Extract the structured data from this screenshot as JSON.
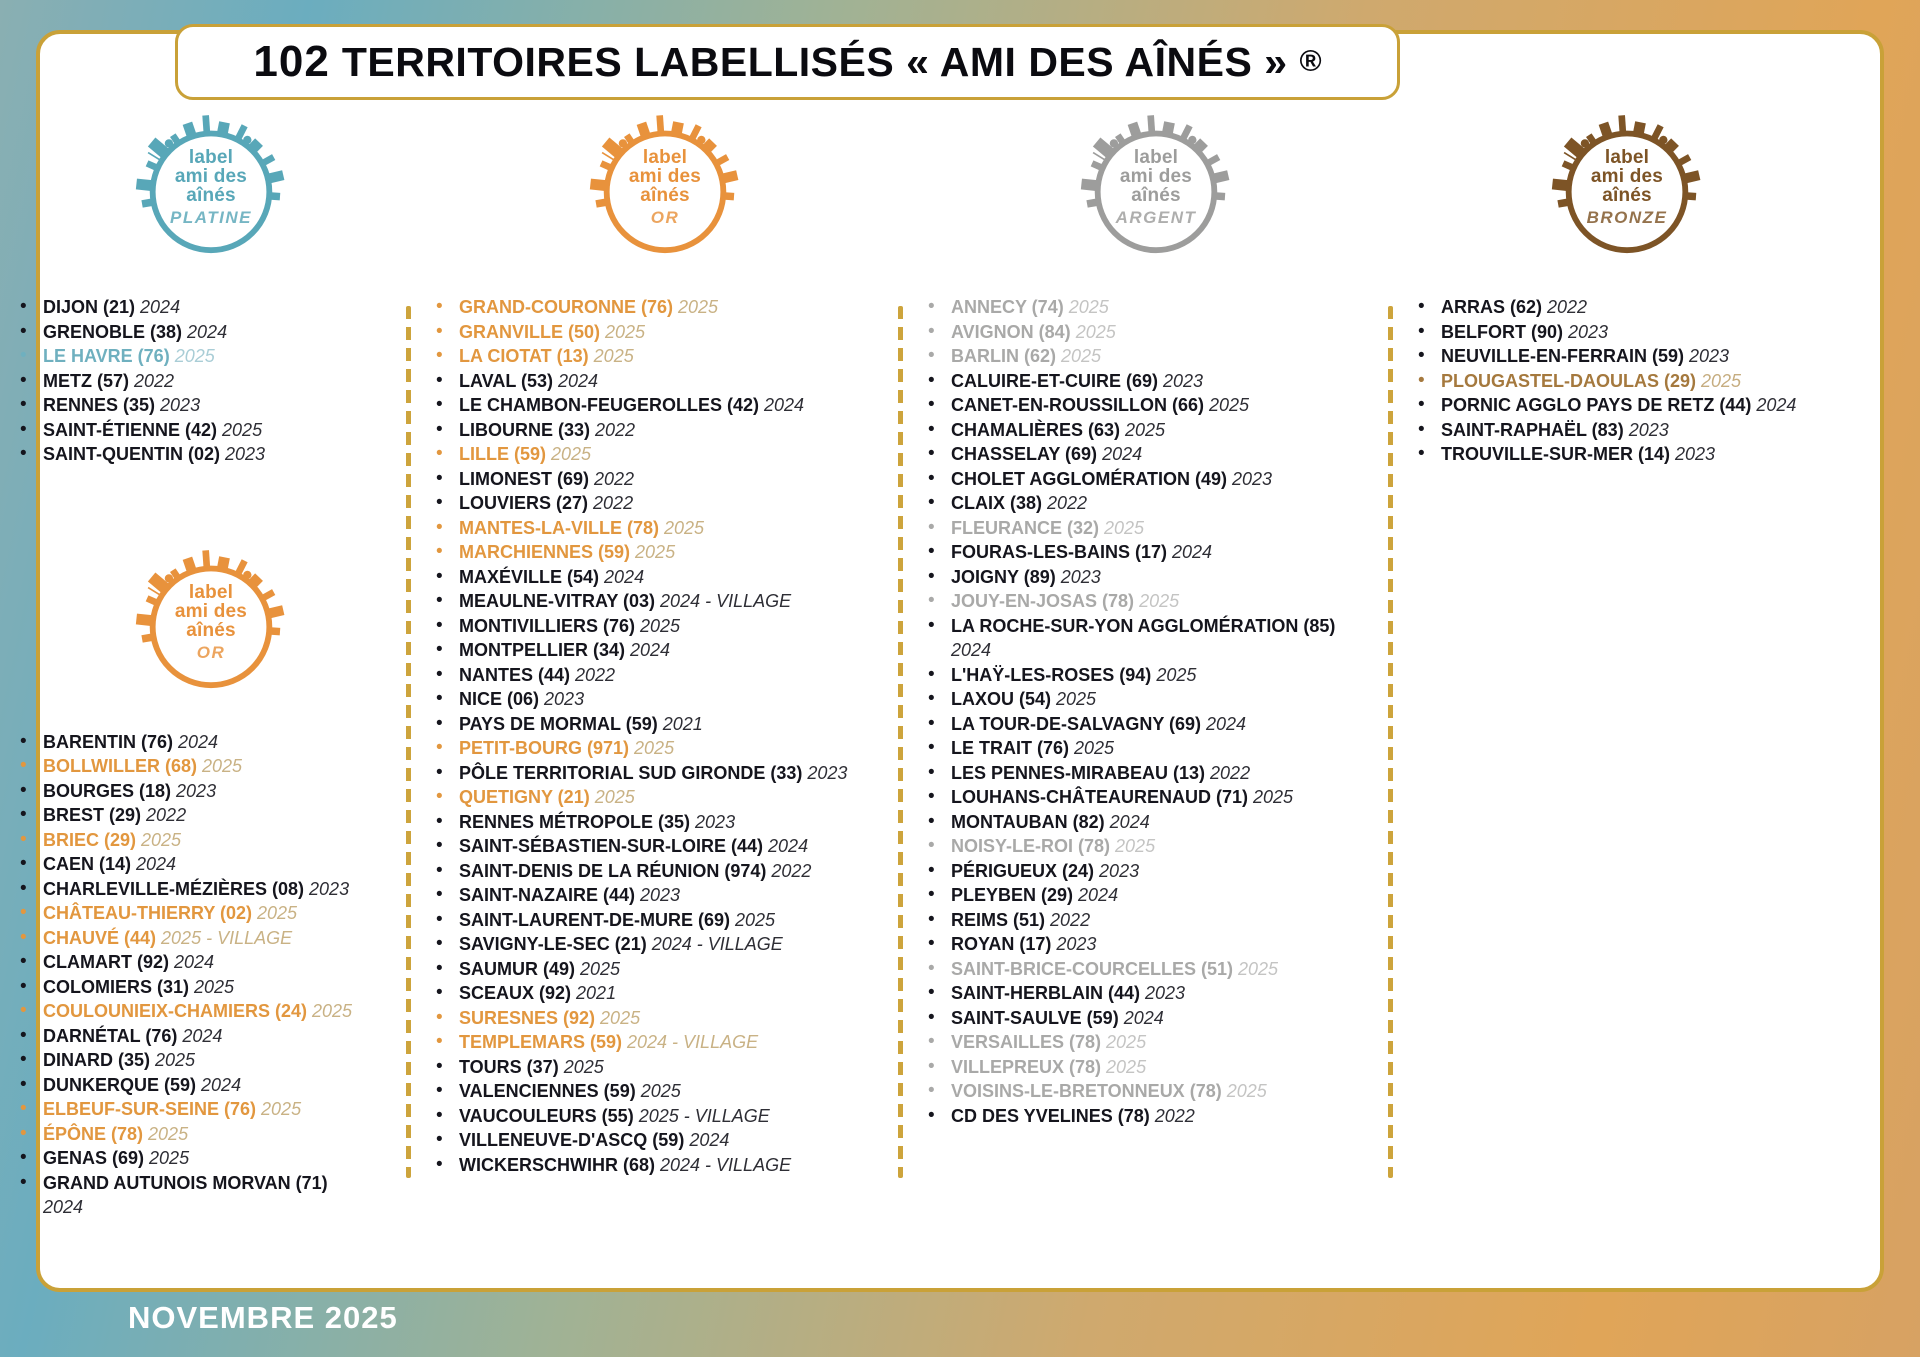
{
  "title": {
    "number": "102",
    "text": "TERRITOIRES LABELLISÉS « AMI DES AÎNÉS »",
    "registered": "®"
  },
  "footer": {
    "date": "NOVEMBRE 2025"
  },
  "badge": {
    "line1": "label",
    "line2": "ami des",
    "line3": "aînés"
  },
  "levels": {
    "platine": {
      "name": "PLATINE",
      "color": "#58a7b8"
    },
    "or": {
      "name": "OR",
      "color": "#e8923c"
    },
    "argent": {
      "name": "ARGENT",
      "color": "#9d9d9c"
    },
    "bronze": {
      "name": "BRONZE",
      "color": "#7d5426"
    }
  },
  "columns": [
    {
      "sections": [
        {
          "level": "platine",
          "items": [
            {
              "name": "DIJON (21)",
              "year": "2024",
              "hl": false
            },
            {
              "name": "GRENOBLE (38)",
              "year": "2024",
              "hl": false
            },
            {
              "name": "LE HAVRE (76)",
              "year": "2025",
              "hl": true
            },
            {
              "name": "METZ (57)",
              "year": "2022",
              "hl": false
            },
            {
              "name": "RENNES (35)",
              "year": "2023",
              "hl": false
            },
            {
              "name": "SAINT-ÉTIENNE (42)",
              "year": "2025",
              "hl": false
            },
            {
              "name": "SAINT-QUENTIN (02)",
              "year": "2023",
              "hl": false
            }
          ]
        },
        {
          "level": "or",
          "items": [
            {
              "name": "BARENTIN (76)",
              "year": "2024",
              "hl": false
            },
            {
              "name": "BOLLWILLER (68)",
              "year": "2025",
              "hl": true
            },
            {
              "name": "BOURGES (18)",
              "year": "2023",
              "hl": false
            },
            {
              "name": "BREST (29)",
              "year": "2022",
              "hl": false
            },
            {
              "name": "BRIEC (29)",
              "year": "2025",
              "hl": true
            },
            {
              "name": "CAEN (14)",
              "year": "2024",
              "hl": false
            },
            {
              "name": "CHARLEVILLE-MÉZIÈRES (08)",
              "year": "2023",
              "hl": false
            },
            {
              "name": "CHÂTEAU-THIERRY (02)",
              "year": "2025",
              "hl": true
            },
            {
              "name": "CHAUVÉ (44)",
              "year": "2025 - VILLAGE",
              "hl": true
            },
            {
              "name": "CLAMART (92)",
              "year": "2024",
              "hl": false
            },
            {
              "name": "COLOMIERS (31)",
              "year": "2025",
              "hl": false
            },
            {
              "name": "COULOUNIEIX-CHAMIERS (24)",
              "year": "2025",
              "hl": true
            },
            {
              "name": "DARNÉTAL (76)",
              "year": "2024",
              "hl": false
            },
            {
              "name": "DINARD (35)",
              "year": "2025",
              "hl": false
            },
            {
              "name": "DUNKERQUE (59)",
              "year": "2024",
              "hl": false
            },
            {
              "name": "ELBEUF-SUR-SEINE (76)",
              "year": "2025",
              "hl": true
            },
            {
              "name": "ÉPÔNE (78)",
              "year": "2025",
              "hl": true
            },
            {
              "name": "GENAS (69)",
              "year": "2025",
              "hl": false
            },
            {
              "name": "GRAND AUTUNOIS MORVAN (71)",
              "year": "2024",
              "hl": false,
              "br": true
            }
          ]
        }
      ]
    },
    {
      "sections": [
        {
          "level": "or",
          "items": [
            {
              "name": "GRAND-COURONNE (76)",
              "year": "2025",
              "hl": true
            },
            {
              "name": "GRANVILLE (50)",
              "year": "2025",
              "hl": true
            },
            {
              "name": "LA CIOTAT (13)",
              "year": "2025",
              "hl": true
            },
            {
              "name": "LAVAL (53)",
              "year": "2024",
              "hl": false
            },
            {
              "name": "LE CHAMBON-FEUGEROLLES (42)",
              "year": "2024",
              "hl": false
            },
            {
              "name": "LIBOURNE (33)",
              "year": "2022",
              "hl": false
            },
            {
              "name": "LILLE (59)",
              "year": "2025",
              "hl": true
            },
            {
              "name": "LIMONEST (69)",
              "year": "2022",
              "hl": false
            },
            {
              "name": "LOUVIERS (27)",
              "year": "2022",
              "hl": false
            },
            {
              "name": "MANTES-LA-VILLE (78)",
              "year": "2025",
              "hl": true
            },
            {
              "name": "MARCHIENNES (59)",
              "year": "2025",
              "hl": true
            },
            {
              "name": "MAXÉVILLE (54)",
              "year": "2024",
              "hl": false
            },
            {
              "name": "MEAULNE-VITRAY (03)",
              "year": "2024 - VILLAGE",
              "hl": false
            },
            {
              "name": "MONTIVILLIERS (76)",
              "year": "2025",
              "hl": false
            },
            {
              "name": "MONTPELLIER (34)",
              "year": "2024",
              "hl": false
            },
            {
              "name": "NANTES (44)",
              "year": "2022",
              "hl": false
            },
            {
              "name": "NICE (06)",
              "year": "2023",
              "hl": false
            },
            {
              "name": "PAYS DE MORMAL (59)",
              "year": "2021",
              "hl": false
            },
            {
              "name": "PETIT-BOURG (971)",
              "year": "2025",
              "hl": true
            },
            {
              "name": "PÔLE TERRITORIAL SUD GIRONDE (33)",
              "year": "2023",
              "hl": false
            },
            {
              "name": "QUETIGNY (21)",
              "year": "2025",
              "hl": true
            },
            {
              "name": "RENNES MÉTROPOLE (35)",
              "year": "2023",
              "hl": false
            },
            {
              "name": "SAINT-SÉBASTIEN-SUR-LOIRE (44)",
              "year": "2024",
              "hl": false
            },
            {
              "name": "SAINT-DENIS DE LA RÉUNION (974)",
              "year": "2022",
              "hl": false
            },
            {
              "name": "SAINT-NAZAIRE (44)",
              "year": "2023",
              "hl": false
            },
            {
              "name": "SAINT-LAURENT-DE-MURE (69)",
              "year": "2025",
              "hl": false
            },
            {
              "name": "SAVIGNY-LE-SEC (21)",
              "year": "2024 - VILLAGE",
              "hl": false
            },
            {
              "name": "SAUMUR (49)",
              "year": "2025",
              "hl": false
            },
            {
              "name": "SCEAUX (92)",
              "year": "2021",
              "hl": false
            },
            {
              "name": "SURESNES (92)",
              "year": "2025",
              "hl": true
            },
            {
              "name": "TEMPLEMARS (59)",
              "year": "2024 - VILLAGE",
              "hl": true
            },
            {
              "name": "TOURS (37)",
              "year": "2025",
              "hl": false
            },
            {
              "name": "VALENCIENNES (59)",
              "year": "2025",
              "hl": false
            },
            {
              "name": "VAUCOULEURS (55)",
              "year": "2025 - VILLAGE",
              "hl": false
            },
            {
              "name": "VILLENEUVE-D'ASCQ (59)",
              "year": "2024",
              "hl": false
            },
            {
              "name": "WICKERSCHWIHR (68)",
              "year": "2024 - VILLAGE",
              "hl": false
            }
          ]
        }
      ]
    },
    {
      "sections": [
        {
          "level": "argent",
          "items": [
            {
              "name": "ANNECY (74)",
              "year": "2025",
              "hl": true
            },
            {
              "name": "AVIGNON (84)",
              "year": "2025",
              "hl": true
            },
            {
              "name": "BARLIN (62)",
              "year": "2025",
              "hl": true
            },
            {
              "name": "CALUIRE-ET-CUIRE (69)",
              "year": "2023",
              "hl": false
            },
            {
              "name": "CANET-EN-ROUSSILLON (66)",
              "year": "2025",
              "hl": false
            },
            {
              "name": "CHAMALIÈRES (63)",
              "year": "2025",
              "hl": false
            },
            {
              "name": "CHASSELAY (69)",
              "year": "2024",
              "hl": false
            },
            {
              "name": "CHOLET AGGLOMÉRATION (49)",
              "year": "2023",
              "hl": false
            },
            {
              "name": "CLAIX (38)",
              "year": "2022",
              "hl": false
            },
            {
              "name": "FLEURANCE (32)",
              "year": "2025",
              "hl": true
            },
            {
              "name": "FOURAS-LES-BAINS (17)",
              "year": "2024",
              "hl": false
            },
            {
              "name": "JOIGNY (89)",
              "year": "2023",
              "hl": false
            },
            {
              "name": "JOUY-EN-JOSAS (78)",
              "year": "2025",
              "hl": true
            },
            {
              "name": "LA ROCHE-SUR-YON AGGLOMÉRATION (85)",
              "year": "2024",
              "hl": false,
              "br": true
            },
            {
              "name": "L'HAŸ-LES-ROSES (94)",
              "year": "2025",
              "hl": false
            },
            {
              "name": "LAXOU (54)",
              "year": "2025",
              "hl": false
            },
            {
              "name": "LA TOUR-DE-SALVAGNY (69)",
              "year": "2024",
              "hl": false
            },
            {
              "name": "LE TRAIT (76)",
              "year": "2025",
              "hl": false
            },
            {
              "name": "LES PENNES-MIRABEAU (13)",
              "year": "2022",
              "hl": false
            },
            {
              "name": "LOUHANS-CHÂTEAURENAUD (71)",
              "year": "2025",
              "hl": false
            },
            {
              "name": "MONTAUBAN (82)",
              "year": "2024",
              "hl": false
            },
            {
              "name": "NOISY-LE-ROI (78)",
              "year": "2025",
              "hl": true
            },
            {
              "name": "PÉRIGUEUX (24)",
              "year": "2023",
              "hl": false
            },
            {
              "name": "PLEYBEN (29)",
              "year": "2024",
              "hl": false
            },
            {
              "name": "REIMS (51)",
              "year": "2022",
              "hl": false
            },
            {
              "name": "ROYAN (17)",
              "year": "2023",
              "hl": false
            },
            {
              "name": "SAINT-BRICE-COURCELLES (51)",
              "year": "2025",
              "hl": true
            },
            {
              "name": "SAINT-HERBLAIN (44)",
              "year": "2023",
              "hl": false
            },
            {
              "name": "SAINT-SAULVE (59)",
              "year": "2024",
              "hl": false
            },
            {
              "name": "VERSAILLES (78)",
              "year": "2025",
              "hl": true
            },
            {
              "name": "VILLEPREUX (78)",
              "year": "2025",
              "hl": true
            },
            {
              "name": "VOISINS-LE-BRETONNEUX (78)",
              "year": "2025",
              "hl": true
            },
            {
              "name": "CD DES YVELINES (78)",
              "year": "2022",
              "hl": false
            }
          ]
        }
      ]
    },
    {
      "sections": [
        {
          "level": "bronze",
          "items": [
            {
              "name": "ARRAS (62)",
              "year": "2022",
              "hl": false
            },
            {
              "name": "BELFORT (90)",
              "year": "2023",
              "hl": false
            },
            {
              "name": "NEUVILLE-EN-FERRAIN (59)",
              "year": "2023",
              "hl": false
            },
            {
              "name": "PLOUGASTEL-DAOULAS (29)",
              "year": "2025",
              "hl": true
            },
            {
              "name": "PORNIC AGGLO PAYS DE RETZ (44)",
              "year": "2024",
              "hl": false
            },
            {
              "name": "SAINT-RAPHAËL (83)",
              "year": "2023",
              "hl": false
            },
            {
              "name": "TROUVILLE-SUR-MER (14)",
              "year": "2023",
              "hl": false
            }
          ]
        }
      ]
    }
  ]
}
